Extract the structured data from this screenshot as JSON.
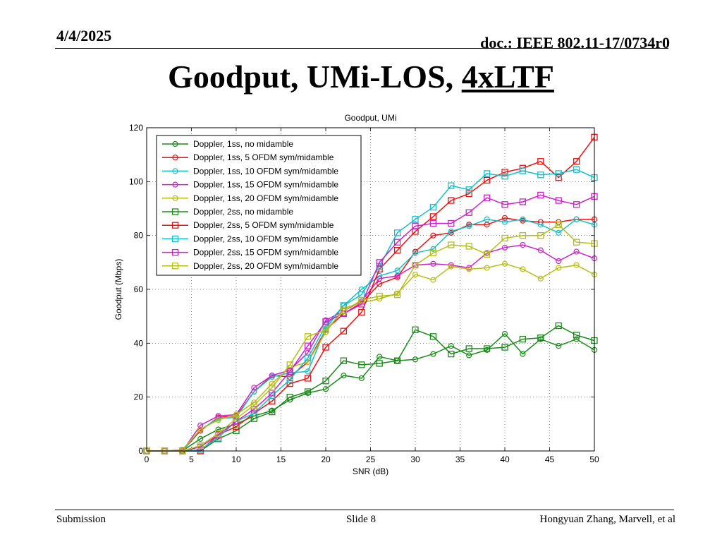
{
  "slide": {
    "date": "4/4/2025",
    "doc": "doc.: IEEE 802.11-17/0734r0",
    "title_main": "Goodput, UMi-LOS, ",
    "title_underlined": "4xLTF",
    "footer_left": "Submission",
    "footer_center": "Slide 8",
    "footer_right": "Hongyuan Zhang, Marvell, et al"
  },
  "chart_data": {
    "type": "line",
    "title": "Goodput, UMi",
    "xlabel": "SNR (dB)",
    "ylabel": "Goodput (Mbps)",
    "xlim": [
      0,
      50
    ],
    "ylim": [
      0,
      120
    ],
    "xticks": [
      0,
      5,
      10,
      15,
      20,
      25,
      30,
      35,
      40,
      45,
      50
    ],
    "yticks": [
      0,
      20,
      40,
      60,
      80,
      100,
      120
    ],
    "grid": true,
    "legend_position": "top-left",
    "x": [
      0,
      2,
      4,
      6,
      8,
      10,
      12,
      14,
      16,
      18,
      20,
      22,
      24,
      26,
      28,
      30,
      32,
      34,
      36,
      38,
      40,
      42,
      44,
      46,
      48,
      50
    ],
    "series": [
      {
        "name": "Doppler, 1ss, no midamble",
        "color": "#1a8a1a",
        "marker": "circle",
        "values": [
          0,
          0,
          0,
          4.5,
          8,
          10,
          13,
          15,
          19,
          21.5,
          23,
          28,
          27,
          35,
          33.5,
          34,
          36,
          39,
          35.5,
          37.5,
          43.5,
          36,
          41.5,
          39,
          41.5,
          37.5
        ]
      },
      {
        "name": "Doppler, 1ss, 5 OFDM sym/midamble",
        "color": "#ee1111",
        "marker": "circle",
        "values": [
          0,
          0,
          0,
          7.5,
          12.5,
          13,
          22,
          28,
          27.5,
          33,
          45,
          51,
          55,
          62,
          64.5,
          74,
          80,
          81,
          84,
          84,
          86.5,
          85.5,
          85,
          85,
          86,
          86
        ]
      },
      {
        "name": "Doppler, 1ss, 10 OFDM sym/midamble",
        "color": "#11c0cc",
        "marker": "circle",
        "values": [
          0,
          0,
          0,
          8,
          12,
          12.5,
          22,
          27.5,
          29,
          29.5,
          45.5,
          54,
          60,
          65,
          67,
          73.5,
          75,
          81.5,
          83.5,
          86,
          85,
          86,
          84,
          81,
          86,
          84
        ]
      },
      {
        "name": "Doppler, 1ss, 15 OFDM sym/midamble",
        "color": "#cc22cc",
        "marker": "circle",
        "values": [
          0,
          0,
          0,
          9.5,
          13,
          13.5,
          23.5,
          28,
          30,
          36.5,
          48.5,
          52,
          55.5,
          64,
          65,
          69,
          69.5,
          69,
          68,
          73.5,
          75.5,
          76.5,
          74.5,
          70.5,
          74,
          71.5
        ]
      },
      {
        "name": "Doppler, 1ss, 20 OFDM sym/midamble",
        "color": "#b5be17",
        "marker": "circle",
        "values": [
          0,
          0,
          0.5,
          8,
          11.5,
          13.5,
          18,
          25,
          31,
          33,
          44,
          53,
          55,
          56.5,
          58.5,
          65.5,
          63.5,
          68.5,
          67.5,
          68,
          69.5,
          67.5,
          64,
          68,
          69,
          65.5
        ]
      },
      {
        "name": "Doppler, 2ss, no midamble",
        "color": "#1a8a1a",
        "marker": "square",
        "values": [
          0,
          0,
          0,
          0,
          4.5,
          7.5,
          12,
          14.5,
          20,
          22,
          26,
          33.5,
          32,
          32.5,
          33.5,
          45,
          42.5,
          36,
          38,
          38,
          38.5,
          41.5,
          42,
          46.5,
          43,
          41
        ]
      },
      {
        "name": "Doppler, 2ss, 5 OFDM sym/midamble",
        "color": "#ee1111",
        "marker": "square",
        "values": [
          0,
          0,
          0,
          0,
          6,
          9,
          14,
          18.5,
          25,
          27,
          38.5,
          44.5,
          51.5,
          67.5,
          74.5,
          81.5,
          87,
          93,
          95.5,
          100.5,
          103.5,
          105,
          107.5,
          101.5,
          107.5,
          116.5
        ]
      },
      {
        "name": "Doppler, 2ss, 10 OFDM sym/midamble",
        "color": "#11c0cc",
        "marker": "square",
        "values": [
          0,
          0,
          0,
          0.5,
          5,
          11,
          14,
          20.5,
          26.5,
          34.5,
          46.5,
          54,
          58,
          68.5,
          81,
          86,
          90.5,
          98.5,
          97,
          103,
          102,
          104,
          102.5,
          103,
          104.5,
          101.5
        ]
      },
      {
        "name": "Doppler, 2ss, 15 OFDM sym/midamble",
        "color": "#cc22cc",
        "marker": "square",
        "values": [
          0,
          0,
          0,
          1.5,
          6,
          11,
          15.5,
          21.5,
          29.5,
          39,
          48,
          51,
          54.5,
          70,
          77.5,
          83.5,
          84.5,
          84.5,
          88.5,
          94,
          91.5,
          92.5,
          95,
          93,
          91.5,
          94.5
        ]
      },
      {
        "name": "Doppler, 2ss, 20 OFDM sym/midamble",
        "color": "#b5be17",
        "marker": "square",
        "values": [
          0,
          0,
          0,
          2,
          6.5,
          12,
          17,
          23.5,
          32,
          42.5,
          45,
          52,
          56,
          57.5,
          58,
          69,
          73.5,
          76.5,
          76,
          73,
          79,
          80,
          80,
          84,
          77.5,
          77
        ]
      }
    ]
  }
}
